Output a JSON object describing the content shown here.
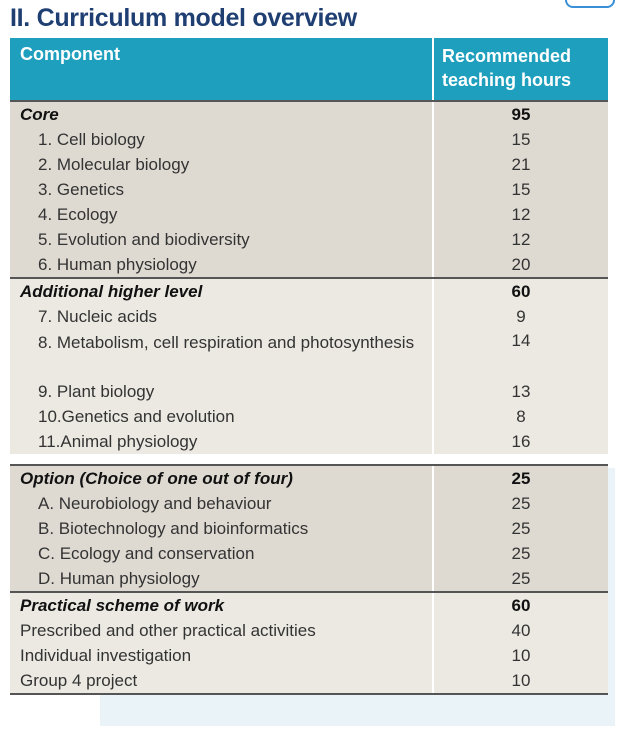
{
  "title": "II. Curriculum model overview",
  "table": {
    "col1_header": "Component",
    "col2_header": "Recommended teaching hours",
    "sections": [
      {
        "heading": "Core",
        "hours": "95",
        "shade": "a",
        "items": [
          {
            "label": "1.  Cell biology",
            "hours": "15"
          },
          {
            "label": "2.  Molecular biology",
            "hours": "21"
          },
          {
            "label": "3.  Genetics",
            "hours": "15"
          },
          {
            "label": "4.  Ecology",
            "hours": "12"
          },
          {
            "label": "5.  Evolution and biodiversity",
            "hours": "12"
          },
          {
            "label": "6.  Human physiology",
            "hours": "20"
          }
        ]
      },
      {
        "heading": "Additional higher level",
        "hours": "60",
        "shade": "b",
        "items": [
          {
            "label": "7.  Nucleic acids",
            "hours": "9"
          },
          {
            "label": "8.  Metabolism, cell respiration and photosynthesis",
            "hours": "14"
          },
          {
            "label": "9.  Plant biology",
            "hours": "13"
          },
          {
            "label": "10.Genetics and evolution",
            "hours": "8"
          },
          {
            "label": "11.Animal physiology",
            "hours": "16"
          }
        ]
      },
      {
        "heading": "Option (Choice of one out of four)",
        "hours": "25",
        "shade": "a",
        "items": [
          {
            "label": "A.  Neurobiology and behaviour",
            "hours": "25"
          },
          {
            "label": "B.  Biotechnology and bioinformatics",
            "hours": "25"
          },
          {
            "label": "C.  Ecology and conservation",
            "hours": "25"
          },
          {
            "label": "D.  Human physiology",
            "hours": "25"
          }
        ]
      },
      {
        "heading": "Practical scheme of work",
        "hours": "60",
        "shade": "b",
        "items": [
          {
            "label": "Prescribed and other practical activities",
            "hours": "40"
          },
          {
            "label": "Individual investigation",
            "hours": "10"
          },
          {
            "label": "Group 4 project",
            "hours": "10"
          }
        ]
      }
    ]
  }
}
